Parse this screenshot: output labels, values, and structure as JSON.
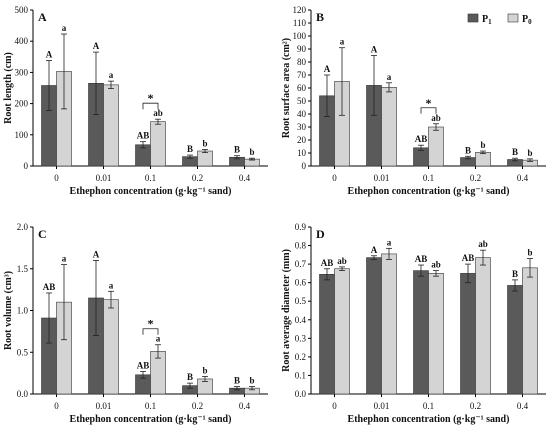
{
  "colors": {
    "p1": "#5a5a5a",
    "p0": "#d4d4d4",
    "axis": "#000000"
  },
  "legend": [
    {
      "key": "p1",
      "label": "P",
      "sub": "1"
    },
    {
      "key": "p0",
      "label": "P",
      "sub": "0"
    }
  ],
  "chart_data": [
    {
      "type": "bar",
      "panel_label": "A",
      "xlabel": "Ethephon concentration (g·kg⁻¹ sand)",
      "ylabel": "Root length (cm)",
      "categories": [
        "0",
        "0.01",
        "0.1",
        "0.2",
        "0.4"
      ],
      "ylim": [
        0,
        500
      ],
      "yticks": [
        "0",
        "100",
        "200",
        "300",
        "400",
        "500"
      ],
      "series": [
        {
          "name": "P1",
          "values": [
            258,
            265,
            68,
            30,
            28
          ],
          "errors": [
            80,
            100,
            10,
            5,
            5
          ],
          "letters": [
            "A",
            "A",
            "AB",
            "B",
            "B"
          ]
        },
        {
          "name": "P0",
          "values": [
            303,
            260,
            142,
            48,
            22
          ],
          "errors": [
            120,
            12,
            8,
            5,
            3
          ],
          "letters": [
            "a",
            "a",
            "ab",
            "b",
            "b"
          ]
        }
      ],
      "significance": {
        "category_index": 2,
        "label": "*"
      }
    },
    {
      "type": "bar",
      "panel_label": "B",
      "xlabel": "Ethephon concentration (g·kg⁻¹ sand)",
      "ylabel": "Root surface area (cm²)",
      "categories": [
        "0",
        "0.01",
        "0.1",
        "0.2",
        "0.4"
      ],
      "ylim": [
        0,
        120
      ],
      "yticks": [
        "0",
        "10",
        "20",
        "30",
        "40",
        "50",
        "60",
        "70",
        "80",
        "90",
        "100",
        "110",
        "120"
      ],
      "series": [
        {
          "name": "P1",
          "values": [
            54,
            62,
            14,
            6.5,
            5
          ],
          "errors": [
            16,
            23,
            2,
            1,
            1
          ],
          "letters": [
            "A",
            "A",
            "AB",
            "B",
            "B"
          ]
        },
        {
          "name": "P0",
          "values": [
            65,
            60.5,
            30,
            10.5,
            4.5
          ],
          "errors": [
            26,
            3.5,
            2.5,
            1,
            1
          ],
          "letters": [
            "a",
            "a",
            "ab",
            "b",
            "b"
          ]
        }
      ],
      "significance": {
        "category_index": 2,
        "label": "*"
      },
      "legend_position": "top-right"
    },
    {
      "type": "bar",
      "panel_label": "C",
      "xlabel": "Ethephon concentration (g·kg⁻¹ sand)",
      "ylabel": "Root volume (cm³)",
      "categories": [
        "0",
        "0.01",
        "0.1",
        "0.2",
        "0.4"
      ],
      "ylim": [
        0,
        2.0
      ],
      "yticks": [
        "0.0",
        "0.5",
        "1.0",
        "1.5",
        "2.0"
      ],
      "series": [
        {
          "name": "P1",
          "values": [
            0.91,
            1.15,
            0.23,
            0.1,
            0.07
          ],
          "errors": [
            0.3,
            0.45,
            0.04,
            0.03,
            0.02
          ],
          "letters": [
            "AB",
            "A",
            "AB",
            "B",
            "B"
          ]
        },
        {
          "name": "P0",
          "values": [
            1.1,
            1.13,
            0.51,
            0.18,
            0.07
          ],
          "errors": [
            0.45,
            0.1,
            0.08,
            0.03,
            0.02
          ],
          "letters": [
            "a",
            "a",
            "a",
            "b",
            "b"
          ]
        }
      ],
      "significance": {
        "category_index": 2,
        "label": "*"
      }
    },
    {
      "type": "bar",
      "panel_label": "D",
      "xlabel": "Ethephon concentration (g·kg⁻¹ sand)",
      "ylabel": "Root average diameter (mm)",
      "categories": [
        "0",
        "0.01",
        "0.1",
        "0.2",
        "0.4"
      ],
      "ylim": [
        0,
        0.9
      ],
      "yticks": [
        "0.0",
        "0.1",
        "0.2",
        "0.3",
        "0.4",
        "0.5",
        "0.6",
        "0.7",
        "0.8",
        "0.9"
      ],
      "series": [
        {
          "name": "P1",
          "values": [
            0.645,
            0.735,
            0.665,
            0.65,
            0.585
          ],
          "errors": [
            0.03,
            0.01,
            0.03,
            0.05,
            0.03
          ],
          "letters": [
            "AB",
            "A",
            "AB",
            "AB",
            "B"
          ]
        },
        {
          "name": "P0",
          "values": [
            0.675,
            0.755,
            0.65,
            0.735,
            0.68
          ],
          "errors": [
            0.01,
            0.03,
            0.015,
            0.04,
            0.05
          ],
          "letters": [
            "ab",
            "a",
            "ab",
            "ab",
            "b"
          ]
        }
      ],
      "significance": null
    }
  ]
}
